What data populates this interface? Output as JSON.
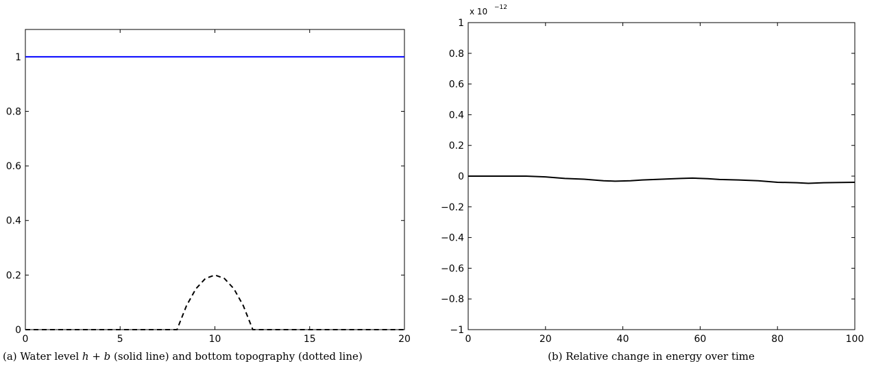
{
  "chart_data": [
    {
      "type": "line",
      "xlim": [
        0,
        20
      ],
      "ylim": [
        0,
        1.1
      ],
      "xticks": [
        0,
        5,
        10,
        15,
        20
      ],
      "yticks": [
        0,
        0.2,
        0.4,
        0.6,
        0.8,
        1
      ],
      "x_tick_labels": [
        "0",
        "5",
        "10",
        "15",
        "20"
      ],
      "y_tick_labels": [
        "0",
        "0.2",
        "0.4",
        "0.6",
        "0.8",
        "1"
      ],
      "grid": false,
      "series": [
        {
          "style": "solid",
          "color": "#0000ff",
          "x": [
            0,
            20
          ],
          "y": [
            1,
            1
          ]
        },
        {
          "style": "dashed",
          "color": "#000000",
          "x": [
            0,
            8,
            8.5,
            9,
            9.5,
            10,
            10.5,
            11,
            11.5,
            12,
            20
          ],
          "y": [
            0,
            0,
            0.0875,
            0.15,
            0.1875,
            0.2,
            0.1875,
            0.15,
            0.0875,
            0,
            0
          ]
        }
      ],
      "caption": {
        "prefix": "(a) Water level ",
        "math": "h + b",
        "suffix": " (solid line) and bottom topography (dotted line)"
      }
    },
    {
      "type": "line",
      "xlim": [
        0,
        100
      ],
      "ylim": [
        -1,
        1
      ],
      "xticks": [
        0,
        20,
        40,
        60,
        80,
        100
      ],
      "yticks": [
        -1,
        -0.8,
        -0.6,
        -0.4,
        -0.2,
        0,
        0.2,
        0.4,
        0.6,
        0.8,
        1
      ],
      "x_tick_labels": [
        "0",
        "20",
        "40",
        "60",
        "80",
        "100"
      ],
      "y_tick_labels": [
        "−1",
        "−0.8",
        "−0.6",
        "−0.4",
        "−0.2",
        "0",
        "0.2",
        "0.4",
        "0.6",
        "0.8",
        "1"
      ],
      "exponent_label": {
        "base": "x 10",
        "power": "−12"
      },
      "grid": false,
      "series": [
        {
          "style": "solid",
          "color": "#000000",
          "x": [
            0,
            10,
            15,
            20,
            25,
            30,
            35,
            38,
            42,
            45,
            50,
            55,
            58,
            62,
            65,
            70,
            75,
            80,
            85,
            88,
            92,
            95,
            100
          ],
          "y": [
            0,
            0,
            0,
            -0.005,
            -0.015,
            -0.02,
            -0.03,
            -0.033,
            -0.03,
            -0.025,
            -0.02,
            -0.015,
            -0.013,
            -0.017,
            -0.022,
            -0.025,
            -0.03,
            -0.04,
            -0.043,
            -0.047,
            -0.043,
            -0.042,
            -0.04
          ]
        }
      ],
      "caption": {
        "text": "(b) Relative change in energy over time"
      }
    }
  ]
}
